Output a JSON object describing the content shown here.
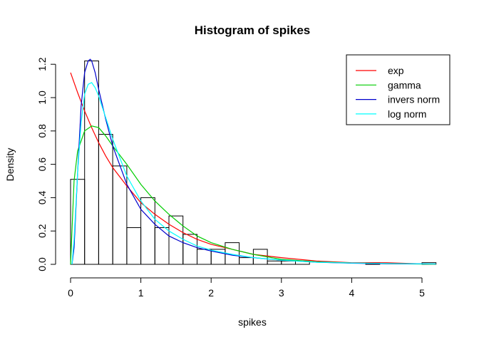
{
  "chart_data": {
    "type": "bar",
    "title": "Histogram of spikes",
    "xlabel": "spikes",
    "ylabel": "Density",
    "xlim": [
      0,
      5.2
    ],
    "ylim": [
      0,
      1.2
    ],
    "xticks": [
      "0",
      "1",
      "2",
      "3",
      "4",
      "5"
    ],
    "yticks": [
      "0.0",
      "0.2",
      "0.4",
      "0.6",
      "0.8",
      "1.0",
      "1.2"
    ],
    "grid": false,
    "legend_position": "top-right",
    "bin_width": 0.2,
    "bins": [
      {
        "x0": 0.0,
        "x1": 0.2,
        "density": 0.51
      },
      {
        "x0": 0.2,
        "x1": 0.4,
        "density": 1.22
      },
      {
        "x0": 0.4,
        "x1": 0.6,
        "density": 0.78
      },
      {
        "x0": 0.6,
        "x1": 0.8,
        "density": 0.59
      },
      {
        "x0": 0.8,
        "x1": 1.0,
        "density": 0.22
      },
      {
        "x0": 1.0,
        "x1": 1.2,
        "density": 0.4
      },
      {
        "x0": 1.2,
        "x1": 1.4,
        "density": 0.22
      },
      {
        "x0": 1.4,
        "x1": 1.6,
        "density": 0.29
      },
      {
        "x0": 1.6,
        "x1": 1.8,
        "density": 0.18
      },
      {
        "x0": 1.8,
        "x1": 2.0,
        "density": 0.09
      },
      {
        "x0": 2.0,
        "x1": 2.2,
        "density": 0.09
      },
      {
        "x0": 2.2,
        "x1": 2.4,
        "density": 0.13
      },
      {
        "x0": 2.4,
        "x1": 2.6,
        "density": 0.04
      },
      {
        "x0": 2.6,
        "x1": 2.8,
        "density": 0.09
      },
      {
        "x0": 2.8,
        "x1": 3.0,
        "density": 0.02
      },
      {
        "x0": 3.0,
        "x1": 3.2,
        "density": 0.02
      },
      {
        "x0": 3.2,
        "x1": 3.4,
        "density": 0.02
      },
      {
        "x0": 3.4,
        "x1": 3.6,
        "density": 0.0
      },
      {
        "x0": 3.6,
        "x1": 3.8,
        "density": 0.0
      },
      {
        "x0": 3.8,
        "x1": 4.0,
        "density": 0.0
      },
      {
        "x0": 4.0,
        "x1": 4.2,
        "density": 0.0
      },
      {
        "x0": 4.2,
        "x1": 4.4,
        "density": 0.01
      },
      {
        "x0": 4.4,
        "x1": 4.6,
        "density": 0.0
      },
      {
        "x0": 4.6,
        "x1": 4.8,
        "density": 0.0
      },
      {
        "x0": 4.8,
        "x1": 5.0,
        "density": 0.0
      },
      {
        "x0": 5.0,
        "x1": 5.2,
        "density": 0.01
      }
    ],
    "series": [
      {
        "name": "exp",
        "color": "#ff0000",
        "type": "line",
        "x": [
          0.0,
          0.1,
          0.2,
          0.3,
          0.4,
          0.5,
          0.6,
          0.8,
          1.0,
          1.2,
          1.4,
          1.6,
          1.8,
          2.0,
          2.3,
          2.6,
          3.0,
          3.5,
          4.0,
          4.5,
          5.2
        ],
        "y": [
          1.15,
          1.03,
          0.92,
          0.82,
          0.73,
          0.65,
          0.58,
          0.47,
          0.37,
          0.3,
          0.24,
          0.19,
          0.15,
          0.12,
          0.09,
          0.06,
          0.04,
          0.02,
          0.01,
          0.01,
          0.0
        ]
      },
      {
        "name": "gamma",
        "color": "#00cd00",
        "type": "line",
        "x": [
          0.0,
          0.05,
          0.1,
          0.2,
          0.3,
          0.4,
          0.5,
          0.6,
          0.8,
          1.0,
          1.2,
          1.4,
          1.6,
          1.8,
          2.0,
          2.3,
          2.6,
          3.0,
          3.5,
          4.0,
          4.5,
          5.2
        ],
        "y": [
          0.0,
          0.5,
          0.68,
          0.8,
          0.83,
          0.82,
          0.77,
          0.71,
          0.6,
          0.48,
          0.38,
          0.3,
          0.23,
          0.17,
          0.13,
          0.09,
          0.06,
          0.03,
          0.015,
          0.008,
          0.004,
          0.001
        ]
      },
      {
        "name": "invers norm",
        "color": "#0000cd",
        "type": "line",
        "x": [
          0.02,
          0.05,
          0.1,
          0.15,
          0.2,
          0.25,
          0.28,
          0.3,
          0.35,
          0.4,
          0.5,
          0.6,
          0.8,
          1.0,
          1.2,
          1.4,
          1.6,
          1.8,
          2.0,
          2.3,
          2.6,
          3.0,
          3.5,
          4.0,
          4.5,
          5.2
        ],
        "y": [
          0.0,
          0.1,
          0.55,
          0.95,
          1.15,
          1.22,
          1.23,
          1.22,
          1.15,
          1.05,
          0.87,
          0.71,
          0.48,
          0.33,
          0.24,
          0.17,
          0.13,
          0.1,
          0.08,
          0.055,
          0.04,
          0.025,
          0.013,
          0.007,
          0.004,
          0.002
        ]
      },
      {
        "name": "log norm",
        "color": "#00ffff",
        "type": "line",
        "x": [
          0.02,
          0.05,
          0.1,
          0.15,
          0.2,
          0.25,
          0.3,
          0.35,
          0.4,
          0.5,
          0.6,
          0.8,
          1.0,
          1.2,
          1.4,
          1.6,
          1.8,
          2.0,
          2.3,
          2.6,
          3.0,
          3.5,
          4.0,
          4.5,
          5.2
        ],
        "y": [
          0.0,
          0.15,
          0.55,
          0.85,
          1.02,
          1.08,
          1.09,
          1.06,
          1.01,
          0.88,
          0.75,
          0.53,
          0.38,
          0.27,
          0.2,
          0.15,
          0.11,
          0.085,
          0.06,
          0.04,
          0.025,
          0.013,
          0.008,
          0.005,
          0.002
        ]
      }
    ],
    "legend": [
      "exp",
      "gamma",
      "invers norm",
      "log norm"
    ]
  }
}
